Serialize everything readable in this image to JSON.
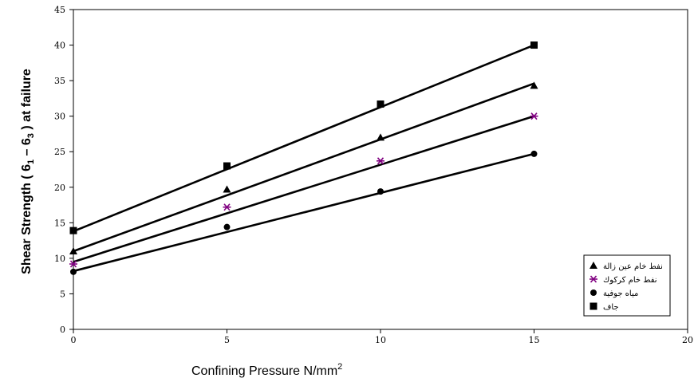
{
  "chart_data": {
    "type": "line",
    "xlabel": "Confining Pressure N/mm",
    "xlabel_sup": "2",
    "ylabel": "Shear Strength ( 6",
    "ylabel_sub1": "1",
    "ylabel_mid": " – 6",
    "ylabel_sub2": "3",
    "ylabel_end": " ) at failure",
    "xlim": [
      0,
      20
    ],
    "ylim": [
      0,
      45
    ],
    "x_ticks": [
      "0",
      "5",
      "10",
      "15",
      "20"
    ],
    "y_ticks": [
      "0",
      "5",
      "10",
      "15",
      "20",
      "25",
      "30",
      "35",
      "40",
      "45"
    ],
    "grid": false,
    "legend_position": "bottom-right",
    "series": [
      {
        "name": "نفط خام عين زالة",
        "marker": "triangle",
        "color": "#000000",
        "x": [
          0,
          5,
          10,
          15
        ],
        "y": [
          11,
          19.7,
          27,
          34.3
        ],
        "fit": [
          11,
          34.6
        ]
      },
      {
        "name": "نفط خام كركوك",
        "marker": "asterisk",
        "color": "#800080",
        "x": [
          0,
          5,
          10,
          15
        ],
        "y": [
          9.2,
          17.2,
          23.7,
          30
        ],
        "fit": [
          9.5,
          30
        ]
      },
      {
        "name": "مياه جوفية",
        "marker": "circle",
        "color": "#000000",
        "x": [
          0,
          5,
          10,
          15
        ],
        "y": [
          8.1,
          14.4,
          19.4,
          24.7
        ],
        "fit": [
          8.2,
          24.7
        ]
      },
      {
        "name": "جاف",
        "marker": "square",
        "color": "#000000",
        "x": [
          0,
          5,
          10,
          15
        ],
        "y": [
          13.9,
          23,
          31.7,
          40
        ],
        "fit": [
          13.8,
          40
        ]
      }
    ]
  }
}
